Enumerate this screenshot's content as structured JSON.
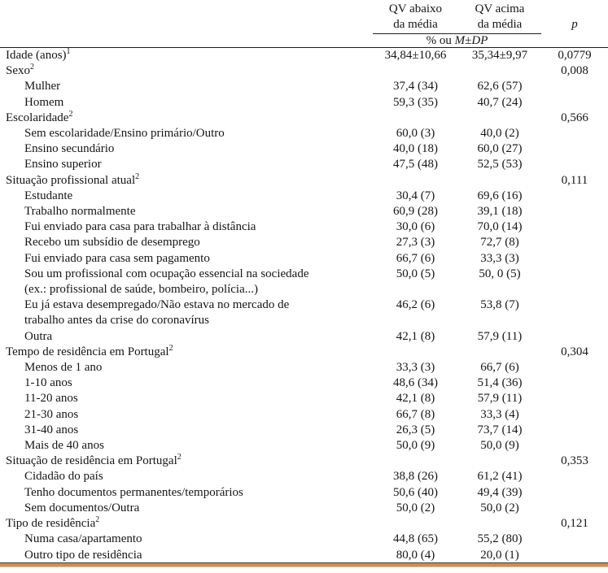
{
  "table": {
    "col_headers": {
      "qv_below": {
        "line1": "QV abaixo",
        "line2": "da média"
      },
      "qv_above": {
        "line1": "QV acima",
        "line2": "da média"
      },
      "p": "p"
    },
    "subheader": {
      "prefix": "% ou ",
      "m": "M",
      "pm": "±",
      "dp": "DP"
    },
    "colors": {
      "rule_dark": "#3f3f3f",
      "rule_orange": "#dc8a43",
      "rule_light": "#c9c9c9",
      "text": "#161616"
    },
    "rows": [
      {
        "label": "Idade (anos)",
        "sup": "1",
        "indent": false,
        "v1": "34,84±10,66",
        "v2": "35,34±9,97",
        "p": "0,0779"
      },
      {
        "label": "Sexo",
        "sup": "2",
        "indent": false,
        "v1": "",
        "v2": "",
        "p": "0,008"
      },
      {
        "label": "Mulher",
        "indent": true,
        "v1": "37,4 (34)",
        "v2": "62,6 (57)",
        "p": ""
      },
      {
        "label": "Homem",
        "indent": true,
        "v1": "59,3 (35)",
        "v2": "40,7 (24)",
        "p": ""
      },
      {
        "label": "Escolaridade",
        "sup": "2",
        "indent": false,
        "v1": "",
        "v2": "",
        "p": "0,566"
      },
      {
        "label": "Sem escolaridade/Ensino primário/Outro",
        "indent": true,
        "v1": "60,0 (3)",
        "v2": "40,0 (2)",
        "p": ""
      },
      {
        "label": "Ensino secundário",
        "indent": true,
        "v1": "40,0 (18)",
        "v2": "60,0 (27)",
        "p": ""
      },
      {
        "label": "Ensino superior",
        "indent": true,
        "v1": "47,5 (48)",
        "v2": "52,5 (53)",
        "p": ""
      },
      {
        "label": "Situação profissional atual",
        "sup": "2",
        "indent": false,
        "v1": "",
        "v2": "",
        "p": "0,111"
      },
      {
        "label": "Estudante",
        "indent": true,
        "v1": "30,4 (7)",
        "v2": "69,6 (16)",
        "p": ""
      },
      {
        "label": "Trabalho normalmente",
        "indent": true,
        "v1": "60,9 (28)",
        "v2": "39,1 (18)",
        "p": ""
      },
      {
        "label": "Fui enviado para casa para trabalhar à distância",
        "indent": true,
        "v1": "30,0 (6)",
        "v2": "70,0 (14)",
        "p": ""
      },
      {
        "label": "Recebo um subsídio de desemprego",
        "indent": true,
        "v1": "27,3 (3)",
        "v2": "72,7 (8)",
        "p": ""
      },
      {
        "label": "Fui enviado para casa sem pagamento",
        "indent": true,
        "v1": "66,7 (6)",
        "v2": "33,3 (3)",
        "p": ""
      },
      {
        "label": "Sou um profissional com ocupação essencial na sociedade",
        "label2": "(ex.: profissional de saúde, bombeiro, polícia...)",
        "indent": true,
        "v1": "50,0 (5)",
        "v2": "50, 0 (5)",
        "p": ""
      },
      {
        "label": "Eu já estava desempregado/Não estava no mercado de",
        "label2": "trabalho antes da crise do coronavírus",
        "indent": true,
        "v1": "46,2 (6)",
        "v2": "53,8 (7)",
        "p": ""
      },
      {
        "label": "Outra",
        "indent": true,
        "v1": "42,1 (8)",
        "v2": "57,9 (11)",
        "p": ""
      },
      {
        "label": "Tempo de residência em Portugal",
        "sup": "2",
        "indent": false,
        "v1": "",
        "v2": "",
        "p": "0,304"
      },
      {
        "label": "Menos de 1 ano",
        "indent": true,
        "v1": "33,3 (3)",
        "v2": "66,7 (6)",
        "p": ""
      },
      {
        "label": "1-10 anos",
        "indent": true,
        "v1": "48,6 (34)",
        "v2": "51,4 (36)",
        "p": ""
      },
      {
        "label": "11-20 anos",
        "indent": true,
        "v1": "42,1 (8)",
        "v2": "57,9 (11)",
        "p": ""
      },
      {
        "label": "21-30 anos",
        "indent": true,
        "v1": "66,7 (8)",
        "v2": "33,3 (4)",
        "p": ""
      },
      {
        "label": "31-40 anos",
        "indent": true,
        "v1": "26,3 (5)",
        "v2": "73,7 (14)",
        "p": ""
      },
      {
        "label": "Mais de 40 anos",
        "indent": true,
        "v1": "50,0 (9)",
        "v2": "50,0 (9)",
        "p": ""
      },
      {
        "label": "Situação de residência em Portugal",
        "sup": "2",
        "indent": false,
        "v1": "",
        "v2": "",
        "p": "0,353"
      },
      {
        "label": "Cidadão do país",
        "indent": true,
        "v1": "38,8 (26)",
        "v2": "61,2 (41)",
        "p": ""
      },
      {
        "label": "Tenho documentos permanentes/temporários",
        "indent": true,
        "v1": "50,6 (40)",
        "v2": "49,4 (39)",
        "p": ""
      },
      {
        "label": "Sem documentos/Outra",
        "indent": true,
        "v1": "50,0 (2)",
        "v2": "50,0 (2)",
        "p": ""
      },
      {
        "label": "Tipo de residência",
        "sup": "2",
        "indent": false,
        "v1": "",
        "v2": "",
        "p": "0,121"
      },
      {
        "label": "Numa casa/apartamento",
        "indent": true,
        "v1": "44,8 (65)",
        "v2": "55,2 (80)",
        "p": ""
      },
      {
        "label": "Outro tipo de residência",
        "indent": true,
        "v1": "80,0 (4)",
        "v2": "20,0 (1)",
        "p": ""
      }
    ]
  }
}
